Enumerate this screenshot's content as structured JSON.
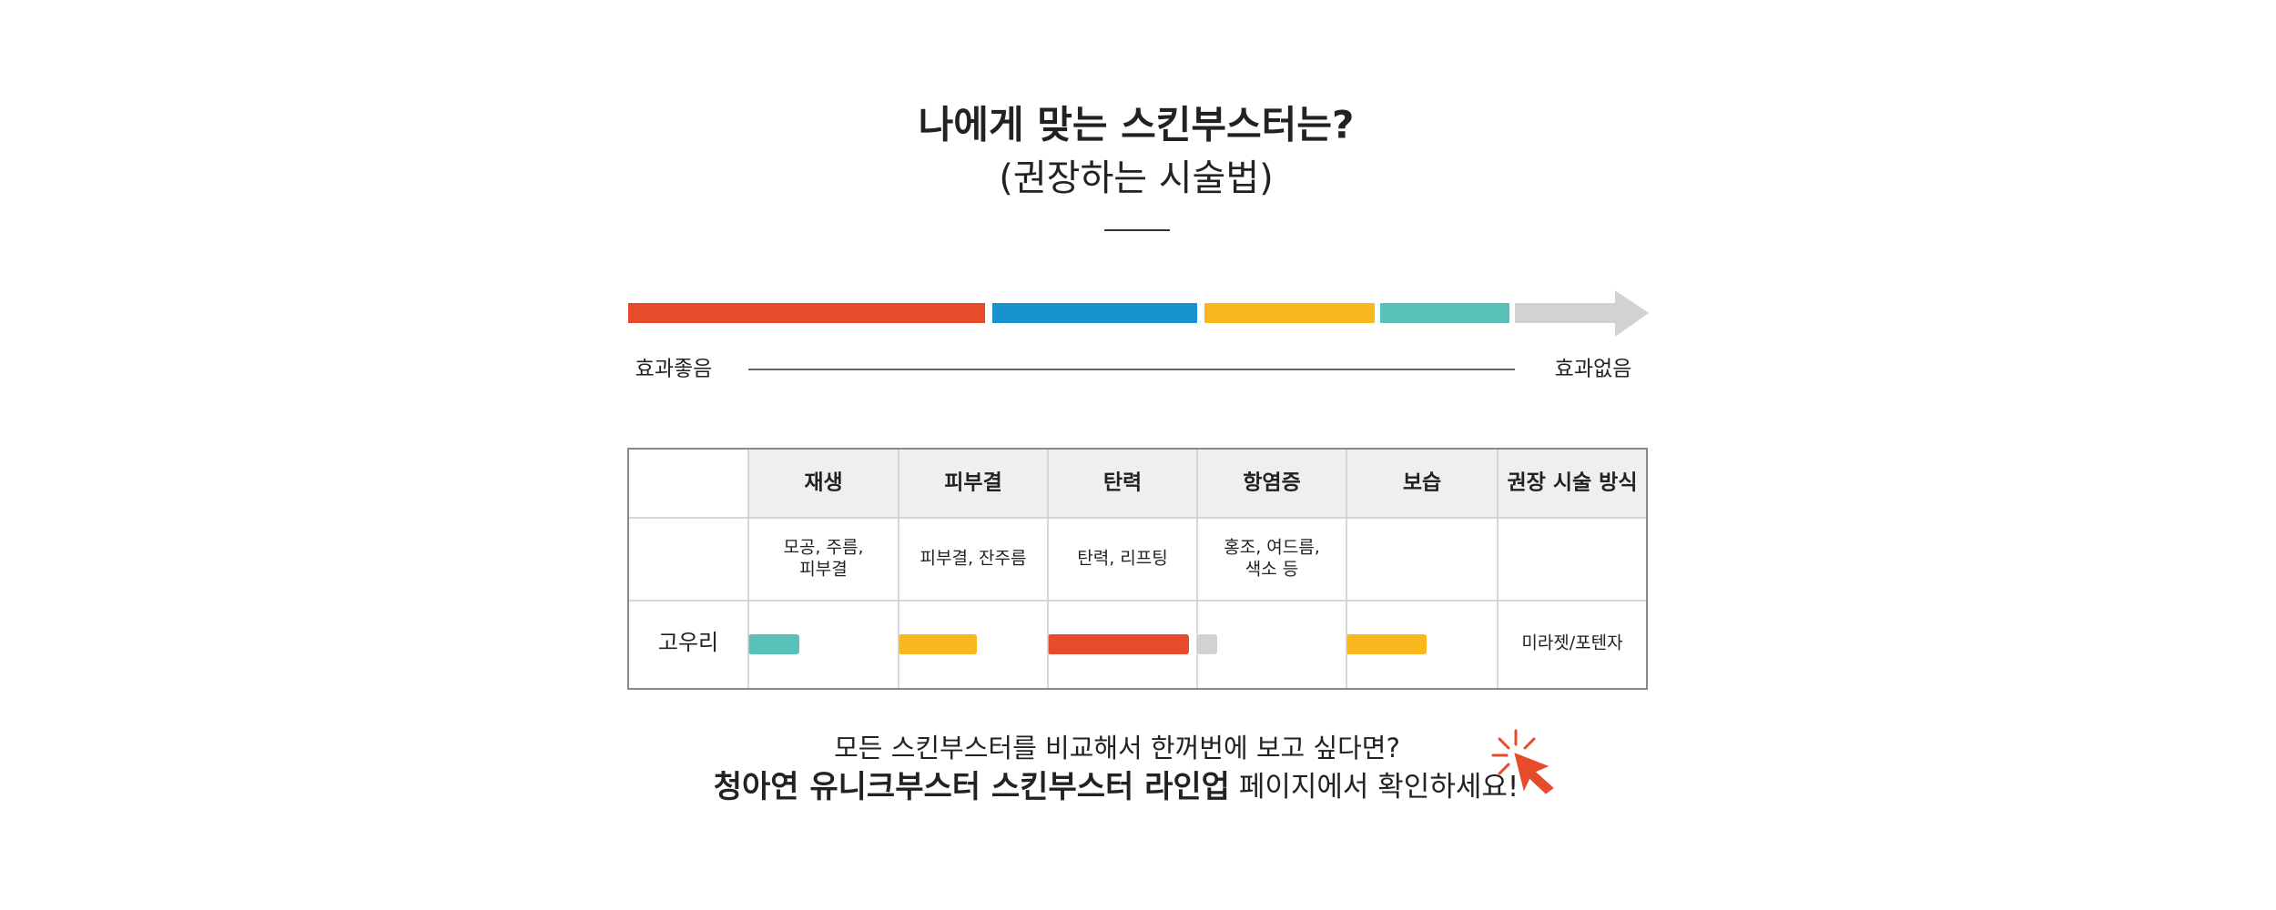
{
  "title": {
    "line1": "나에게 맞는 스킨부스터는?",
    "line2": "(권장하는 시술법)"
  },
  "scale": {
    "left_label": "효과좋음",
    "right_label": "효과없음"
  },
  "table": {
    "header": [
      "재생",
      "피부결",
      "탄력",
      "항염증",
      "보습",
      "권장 시술 방식"
    ],
    "description_row": [
      [
        "모공, 주름,",
        "피부결"
      ],
      [
        "피부결, 잔주름"
      ],
      [
        "탄력, 리프팅"
      ],
      [
        "홍조, 여드름,",
        "색소 등"
      ]
    ],
    "rows": [
      {
        "name": "고우리",
        "method": "미라젯/포텐자"
      }
    ]
  },
  "footer": {
    "line1": "모든 스킨부스터를 비교해서 한꺼번에 보고 싶다면?",
    "line2_bold": "청아연 유니크부스터 스킨부스터 라인업",
    "line2_rest": "페이지에서 확인하세요!"
  }
}
